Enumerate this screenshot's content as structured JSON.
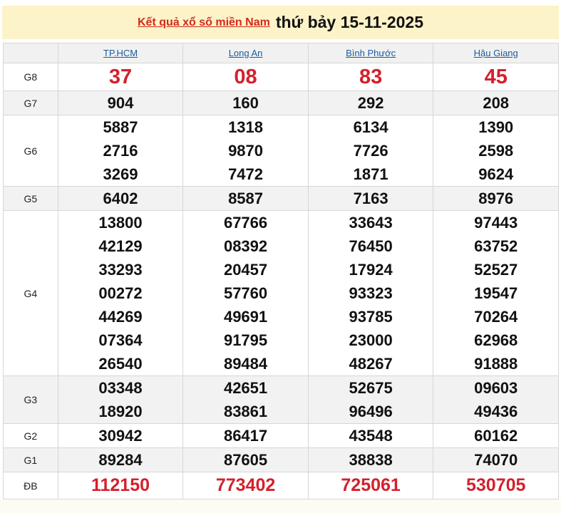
{
  "title": {
    "link": "Kết quả xổ số miền Nam",
    "date": "thứ bảy 15-11-2025"
  },
  "provinces": [
    "TP.HCM",
    "Long An",
    "Bình Phước",
    "Hậu Giang"
  ],
  "accent": "#d4202c",
  "rows": [
    {
      "label": "G8",
      "red": true,
      "values": [
        [
          "37"
        ],
        [
          "08"
        ],
        [
          "83"
        ],
        [
          "45"
        ]
      ]
    },
    {
      "label": "G7",
      "values": [
        [
          "904"
        ],
        [
          "160"
        ],
        [
          "292"
        ],
        [
          "208"
        ]
      ]
    },
    {
      "label": "G6",
      "values": [
        [
          "5887",
          "2716",
          "3269"
        ],
        [
          "1318",
          "9870",
          "7472"
        ],
        [
          "6134",
          "7726",
          "1871"
        ],
        [
          "1390",
          "2598",
          "9624"
        ]
      ]
    },
    {
      "label": "G5",
      "values": [
        [
          "6402"
        ],
        [
          "8587"
        ],
        [
          "7163"
        ],
        [
          "8976"
        ]
      ]
    },
    {
      "label": "G4",
      "values": [
        [
          "13800",
          "42129",
          "33293",
          "00272",
          "44269",
          "07364",
          "26540"
        ],
        [
          "67766",
          "08392",
          "20457",
          "57760",
          "49691",
          "91795",
          "89484"
        ],
        [
          "33643",
          "76450",
          "17924",
          "93323",
          "93785",
          "23000",
          "48267"
        ],
        [
          "97443",
          "63752",
          "52527",
          "19547",
          "70264",
          "62968",
          "91888"
        ]
      ]
    },
    {
      "label": "G3",
      "values": [
        [
          "03348",
          "18920"
        ],
        [
          "42651",
          "83861"
        ],
        [
          "52675",
          "96496"
        ],
        [
          "09603",
          "49436"
        ]
      ]
    },
    {
      "label": "G2",
      "values": [
        [
          "30942"
        ],
        [
          "86417"
        ],
        [
          "43548"
        ],
        [
          "60162"
        ]
      ]
    },
    {
      "label": "G1",
      "values": [
        [
          "89284"
        ],
        [
          "87605"
        ],
        [
          "38838"
        ],
        [
          "74070"
        ]
      ]
    },
    {
      "label": "ĐB",
      "red": true,
      "values": [
        [
          "112150"
        ],
        [
          "773402"
        ],
        [
          "725061"
        ],
        [
          "530705"
        ]
      ]
    }
  ]
}
